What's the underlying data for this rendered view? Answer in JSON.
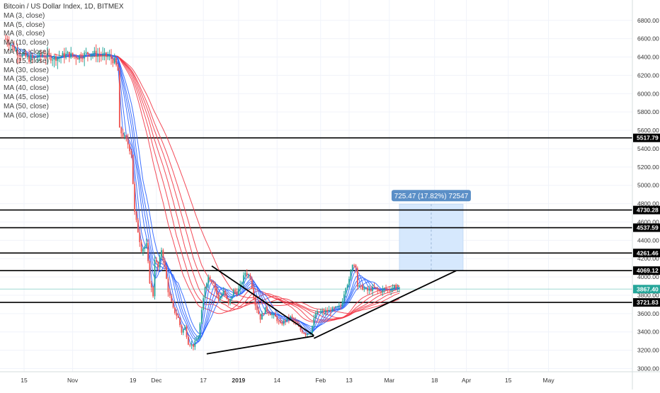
{
  "chart_data": {
    "type": "candlestick",
    "title": "Bitcoin / US Dollar Index, 1D, BITMEX",
    "indicators": [
      "MA (3, close)",
      "MA (5, close)",
      "MA (8, close)",
      "MA (10, close)",
      "MA (12, close)",
      "MA (15, close)",
      "MA (30, close)",
      "MA (35, close)",
      "MA (40, close)",
      "MA (45, close)",
      "MA (50, close)",
      "MA (60, close)"
    ],
    "x_tick_labels": [
      "15",
      "Nov",
      "19",
      "Dec",
      "17",
      "2019",
      "14",
      "Feb",
      "13",
      "Mar",
      "18",
      "Apr",
      "15",
      "May"
    ],
    "y_tick_labels": [
      "3000.00",
      "3200.00",
      "3400.00",
      "3600.00",
      "3800.00",
      "4000.00",
      "4200.00",
      "4400.00",
      "4600.00",
      "4800.00",
      "5000.00",
      "5200.00",
      "5400.00",
      "5600.00",
      "5800.00",
      "6000.00",
      "6200.00",
      "6400.00",
      "6600.00",
      "6800.00"
    ],
    "ylim": [
      2980,
      6890
    ],
    "price_labels": [
      {
        "text": "5517.79",
        "value": 5517.79,
        "color": "#000000"
      },
      {
        "text": "4730.28",
        "value": 4730.28,
        "color": "#000000"
      },
      {
        "text": "4537.59",
        "value": 4537.59,
        "color": "#000000"
      },
      {
        "text": "4261.46",
        "value": 4261.46,
        "color": "#000000"
      },
      {
        "text": "4069.12",
        "value": 4069.12,
        "color": "#000000"
      },
      {
        "text": "3867.40",
        "value": 3867.4,
        "color": "#26a69a"
      },
      {
        "text": "3721.83",
        "value": 3721.83,
        "color": "#000000"
      }
    ],
    "horizontal_lines": [
      5517.79,
      4730.28,
      4537.59,
      4261.46,
      4069.12,
      3721.83
    ],
    "measure_label": "725.47 (17.82%) 72547",
    "measure_box": {
      "x_start_day": 218,
      "x_end_day": 256,
      "y_low": 4069.12,
      "y_high": 4794.59
    },
    "trendlines": [
      {
        "points": [
          [
            103,
            3160
          ],
          [
            167,
            3355
          ]
        ]
      },
      {
        "points": [
          [
            167,
            3330
          ],
          [
            252,
            4069.12
          ]
        ]
      },
      {
        "points": [
          [
            106,
            4120
          ],
          [
            167,
            3360
          ]
        ]
      }
    ],
    "colors": {
      "up": "#26a69a",
      "down": "#ef5350",
      "ma_fast": "#2962ff",
      "ma_slow": "#f23645",
      "line": "#000000",
      "box": "#d6e8fd",
      "box_border": "#c5daf5",
      "badge": "#5b8fc7"
    },
    "x_day_range": [
      -17,
      320
    ],
    "x_tick_days": [
      -6,
      23,
      59,
      73,
      101,
      122,
      145,
      171,
      188,
      212,
      239,
      258,
      283,
      307
    ],
    "price_keyframes": [
      [
        -17,
        6600
      ],
      [
        -10,
        6450
      ],
      [
        -3,
        6380
      ],
      [
        5,
        6420
      ],
      [
        12,
        6390
      ],
      [
        20,
        6430
      ],
      [
        26,
        6400
      ],
      [
        33,
        6450
      ],
      [
        40,
        6420
      ],
      [
        45,
        6400
      ],
      [
        48,
        6350
      ],
      [
        50,
        6250
      ],
      [
        51,
        5600
      ],
      [
        53,
        5550
      ],
      [
        56,
        5450
      ],
      [
        58,
        5350
      ],
      [
        60,
        4700
      ],
      [
        62,
        4500
      ],
      [
        64,
        4300
      ],
      [
        67,
        4350
      ],
      [
        69,
        3950
      ],
      [
        71,
        3800
      ],
      [
        72,
        4200
      ],
      [
        74,
        4100
      ],
      [
        76,
        4300
      ],
      [
        78,
        4100
      ],
      [
        80,
        3850
      ],
      [
        83,
        3650
      ],
      [
        86,
        3550
      ],
      [
        88,
        3400
      ],
      [
        90,
        3450
      ],
      [
        92,
        3280
      ],
      [
        95,
        3250
      ],
      [
        98,
        3350
      ],
      [
        100,
        3620
      ],
      [
        102,
        3900
      ],
      [
        104,
        4000
      ],
      [
        107,
        3950
      ],
      [
        110,
        3750
      ],
      [
        113,
        3850
      ],
      [
        116,
        3700
      ],
      [
        119,
        3850
      ],
      [
        121,
        3830
      ],
      [
        123,
        3900
      ],
      [
        126,
        4050
      ],
      [
        129,
        4000
      ],
      [
        132,
        3700
      ],
      [
        135,
        3550
      ],
      [
        138,
        3650
      ],
      [
        141,
        3600
      ],
      [
        144,
        3560
      ],
      [
        147,
        3480
      ],
      [
        150,
        3530
      ],
      [
        153,
        3560
      ],
      [
        156,
        3500
      ],
      [
        159,
        3420
      ],
      [
        162,
        3380
      ],
      [
        165,
        3400
      ],
      [
        168,
        3600
      ],
      [
        171,
        3620
      ],
      [
        174,
        3620
      ],
      [
        177,
        3640
      ],
      [
        180,
        3660
      ],
      [
        183,
        3680
      ],
      [
        186,
        3900
      ],
      [
        188,
        3960
      ],
      [
        190,
        4150
      ],
      [
        192,
        4120
      ],
      [
        193,
        3900
      ],
      [
        196,
        3880
      ],
      [
        199,
        3850
      ],
      [
        203,
        3880
      ],
      [
        206,
        3840
      ],
      [
        209,
        3870
      ],
      [
        212,
        3860
      ],
      [
        215,
        3900
      ],
      [
        218,
        3867
      ]
    ],
    "ma_periods": [
      3,
      5,
      8,
      10,
      12,
      15,
      30,
      35,
      40,
      45,
      50,
      60
    ]
  }
}
